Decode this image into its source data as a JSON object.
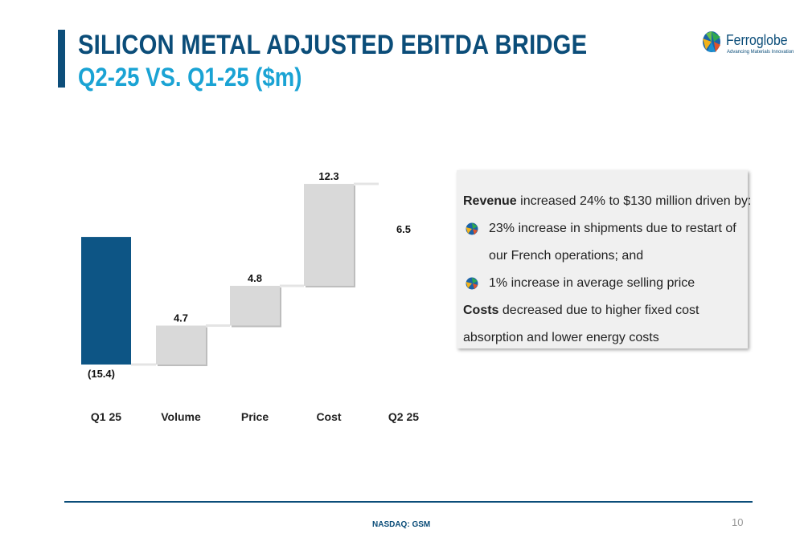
{
  "header": {
    "title": "SILICON METAL ADJUSTED EBITDA BRIDGE",
    "subtitle": "Q2-25 VS. Q1-25 ($m)"
  },
  "logo": {
    "name": "Ferroglobe",
    "tagline": "Advancing Materials Innovation"
  },
  "chart_data": {
    "type": "bar",
    "subtype": "waterfall",
    "categories": [
      "Q1 25",
      "Volume",
      "Price",
      "Cost",
      "Q2 25"
    ],
    "values": [
      -15.4,
      4.7,
      4.8,
      12.3,
      6.5
    ],
    "kinds": [
      "total",
      "delta",
      "delta",
      "delta",
      "total"
    ],
    "value_labels": [
      "(15.4)",
      "4.7",
      "4.8",
      "12.3",
      "6.5"
    ],
    "ylim": [
      -15.4,
      6.5
    ],
    "grid": false,
    "colors": {
      "total": "#0d5585",
      "delta": "#d9d9d9"
    }
  },
  "info": {
    "revenue_bold": "Revenue",
    "revenue_text": " increased 24% to $130 million driven by:",
    "bullet1_line1": "23% increase in shipments due to restart of",
    "bullet1_line2": "our French operations; and",
    "bullet2": "1% increase in average selling price",
    "costs_bold": "Costs",
    "costs_text": " decreased due to higher fixed cost",
    "costs_line2": "absorption and lower energy costs"
  },
  "footer": {
    "ticker": "NASDAQ: GSM",
    "page": "10"
  }
}
